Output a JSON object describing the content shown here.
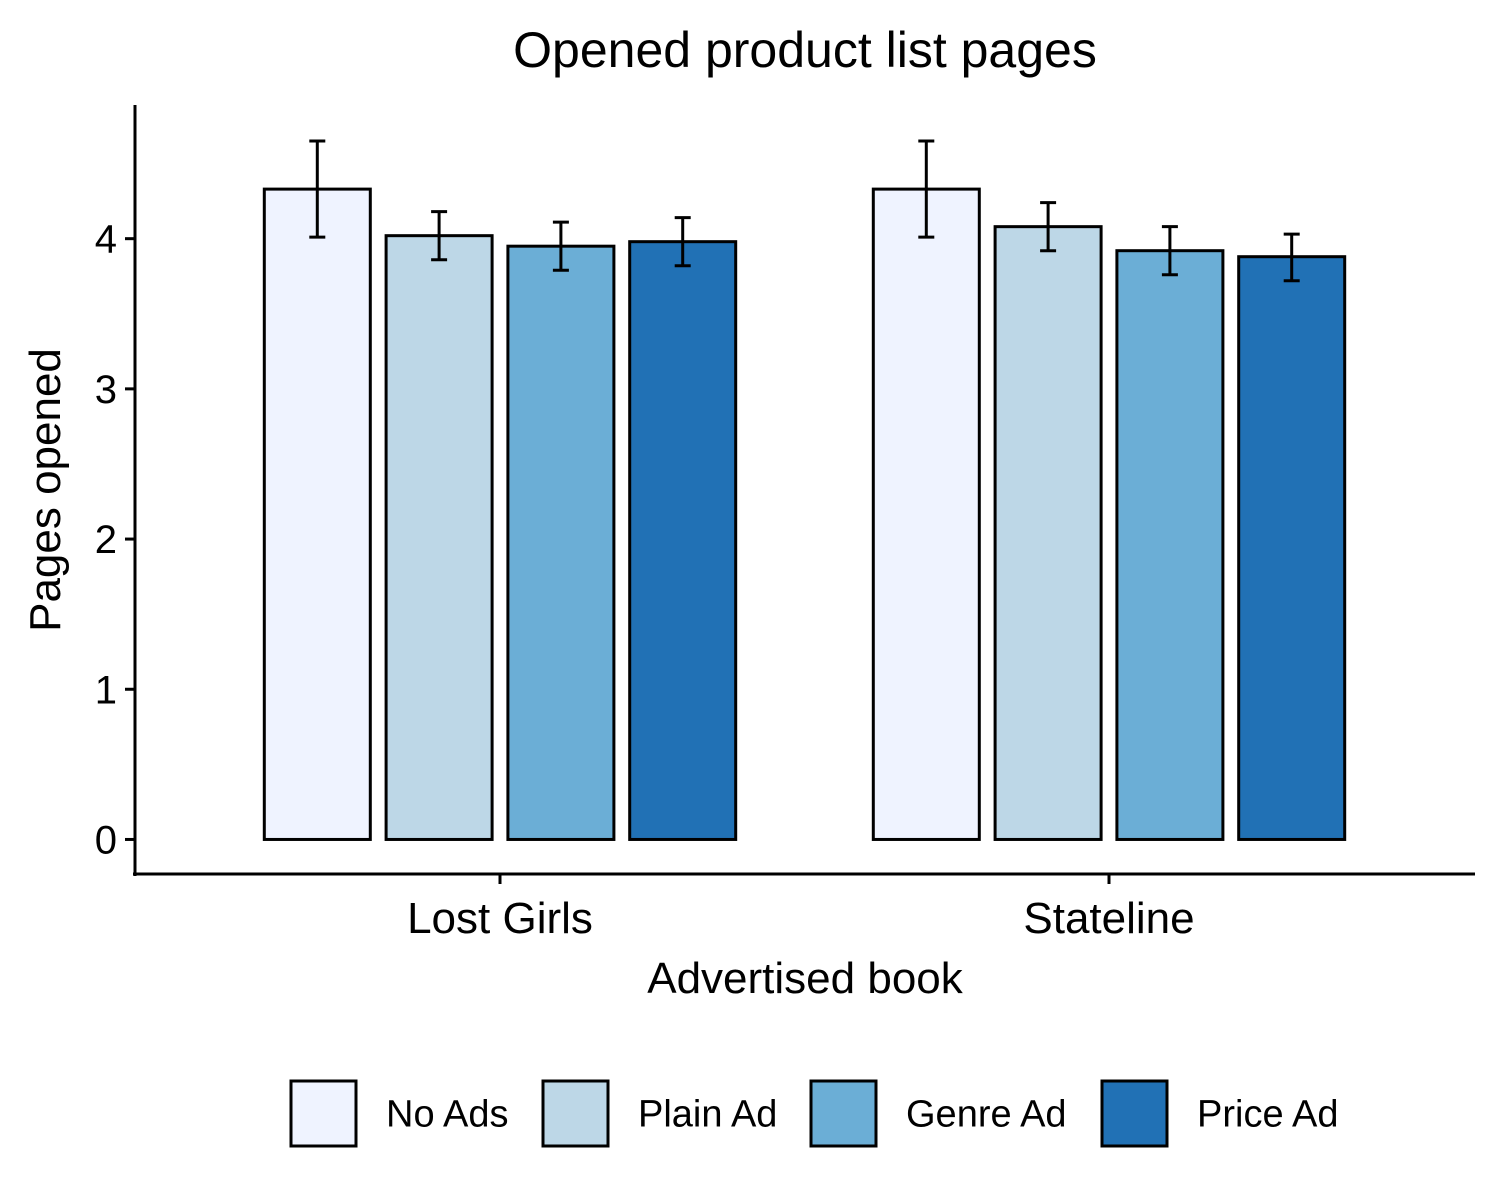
{
  "chart_data": {
    "type": "bar",
    "title": "Opened product list pages",
    "xlabel": "Advertised book",
    "ylabel": "Pages opened",
    "categories": [
      "Lost Girls",
      "Stateline"
    ],
    "series": [
      {
        "name": "No Ads",
        "color": "#eff3ff",
        "values": [
          4.33,
          4.33
        ],
        "err_low": [
          4.01,
          4.01
        ],
        "err_high": [
          4.65,
          4.65
        ]
      },
      {
        "name": "Plain Ad",
        "color": "#bdd7e7",
        "values": [
          4.02,
          4.08
        ],
        "err_low": [
          3.86,
          3.92
        ],
        "err_high": [
          4.18,
          4.24
        ]
      },
      {
        "name": "Genre Ad",
        "color": "#6baed6",
        "values": [
          3.95,
          3.92
        ],
        "err_low": [
          3.79,
          3.76
        ],
        "err_high": [
          4.11,
          4.08
        ]
      },
      {
        "name": "Price Ad",
        "color": "#2171b5",
        "values": [
          3.98,
          3.88
        ],
        "err_low": [
          3.82,
          3.72
        ],
        "err_high": [
          4.14,
          4.03
        ]
      }
    ],
    "yticks": [
      0,
      1,
      2,
      3,
      4
    ],
    "ylim": [
      -0.23,
      4.89
    ],
    "grid": false,
    "legend_position": "bottom"
  }
}
